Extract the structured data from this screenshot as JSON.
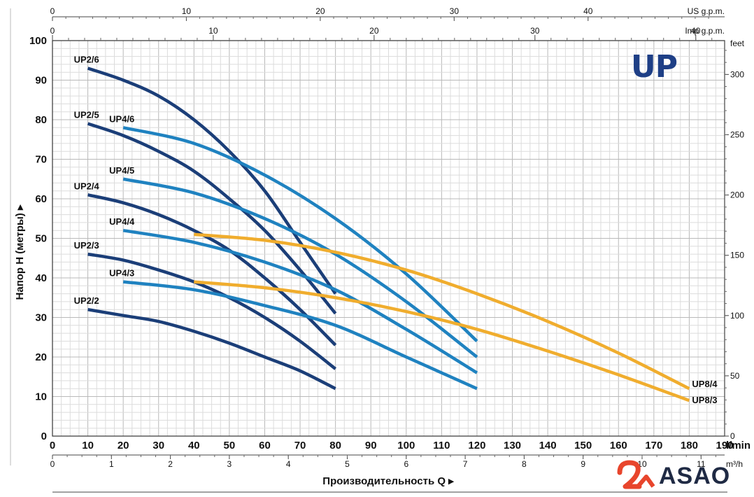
{
  "chart_data": {
    "type": "line",
    "title": "UP",
    "xlabel": "Производительность Q",
    "ylabel": "Напор H (метры)",
    "x_unit": "l/min",
    "xlim": [
      0,
      190
    ],
    "ylim": [
      0,
      100
    ],
    "x_ticks": [
      0,
      10,
      20,
      30,
      40,
      50,
      60,
      70,
      80,
      90,
      100,
      110,
      120,
      130,
      140,
      150,
      160,
      170,
      180,
      190
    ],
    "y_ticks": [
      0,
      10,
      20,
      30,
      40,
      50,
      60,
      70,
      80,
      90,
      100
    ],
    "secondary_axes": {
      "us_gpm": {
        "label": "US g.p.m.",
        "ticks": [
          0,
          10,
          20,
          30,
          40
        ],
        "l_per_unit": 3.785
      },
      "imp_gpm": {
        "label": "Imp g.p.m.",
        "ticks": [
          0,
          10,
          20,
          30,
          40
        ],
        "l_per_unit": 4.546
      },
      "m3h": {
        "label": "m³/h",
        "ticks": [
          0,
          1,
          2,
          3,
          4,
          5,
          6,
          7,
          8,
          9,
          10,
          11
        ],
        "l_per_unit": 16.667
      },
      "feet": {
        "label": "feet",
        "ticks": [
          0,
          50,
          100,
          150,
          200,
          250,
          300
        ],
        "m_per_unit": 0.3048
      }
    },
    "series": [
      {
        "name": "UP2/6",
        "color": "#1b3e78",
        "x": [
          10,
          20,
          30,
          40,
          50,
          60,
          70,
          80
        ],
        "y": [
          93,
          90,
          86,
          80,
          72,
          62,
          49,
          36
        ]
      },
      {
        "name": "UP2/5",
        "color": "#1b3e78",
        "x": [
          10,
          20,
          30,
          40,
          50,
          60,
          70,
          80
        ],
        "y": [
          79,
          76,
          72,
          67,
          60,
          52,
          42,
          31
        ]
      },
      {
        "name": "UP2/4",
        "color": "#1b3e78",
        "x": [
          10,
          20,
          30,
          40,
          50,
          60,
          70,
          80
        ],
        "y": [
          61,
          59,
          56,
          52,
          47,
          40,
          32,
          23
        ]
      },
      {
        "name": "UP2/3",
        "color": "#1b3e78",
        "x": [
          10,
          20,
          30,
          40,
          50,
          60,
          70,
          80
        ],
        "y": [
          46,
          44.5,
          42,
          39,
          35,
          30,
          24,
          17
        ]
      },
      {
        "name": "UP2/2",
        "color": "#1b3e78",
        "x": [
          10,
          20,
          30,
          40,
          50,
          60,
          70,
          80
        ],
        "y": [
          32,
          30.5,
          29,
          26.5,
          23.5,
          20,
          16.5,
          12
        ]
      },
      {
        "name": "UP4/6",
        "color": "#1f82c0",
        "x": [
          20,
          40,
          60,
          80,
          100,
          120
        ],
        "y": [
          78,
          74,
          66,
          55,
          41,
          24
        ]
      },
      {
        "name": "UP4/5",
        "color": "#1f82c0",
        "x": [
          20,
          40,
          60,
          80,
          100,
          120
        ],
        "y": [
          65,
          61.5,
          55,
          46,
          34,
          20
        ]
      },
      {
        "name": "UP4/4",
        "color": "#1f82c0",
        "x": [
          20,
          40,
          60,
          80,
          100,
          120
        ],
        "y": [
          52,
          49,
          44,
          37,
          27,
          16
        ]
      },
      {
        "name": "UP4/3",
        "color": "#1f82c0",
        "x": [
          20,
          40,
          60,
          80,
          100,
          120
        ],
        "y": [
          39,
          37,
          33,
          28,
          20,
          12
        ]
      },
      {
        "name": "UP8/4",
        "color": "#f0ad2e",
        "x": [
          40,
          60,
          80,
          100,
          120,
          140,
          160,
          180
        ],
        "y": [
          51,
          49.5,
          46.5,
          42,
          36,
          29,
          21,
          12
        ]
      },
      {
        "name": "UP8/3",
        "color": "#f0ad2e",
        "x": [
          40,
          60,
          80,
          100,
          120,
          140,
          160,
          180
        ],
        "y": [
          39,
          37.5,
          35,
          31.5,
          27,
          21.5,
          15.5,
          9
        ]
      }
    ]
  },
  "brand": {
    "name": "ASAO",
    "accent": "#e8452c",
    "text_color": "#1f2a44"
  },
  "logo": {
    "text": "UP",
    "color": "#1e3f86"
  }
}
